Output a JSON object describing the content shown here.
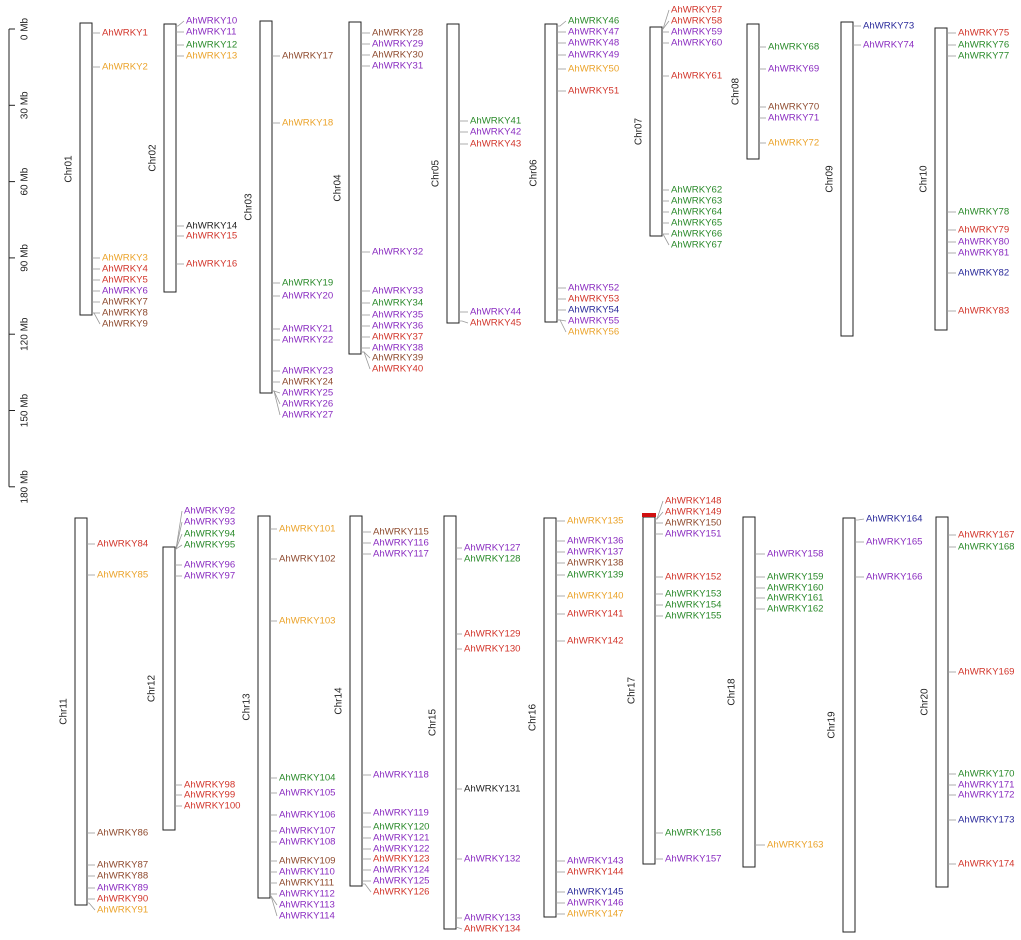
{
  "colors": {
    "red": "#d2352b",
    "orange": "#eba32a",
    "green": "#2a8a2a",
    "purple": "#8a2cc0",
    "brown": "#8f4b2f",
    "blue": "#2a2a9a",
    "black": "#222222",
    "centromere": "#d01010"
  },
  "scale": {
    "unit": "Mb",
    "ticks": [
      "0 Mb",
      "30 Mb",
      "60 Mb",
      "90 Mb",
      "120 Mb",
      "150 Mb",
      "180 Mb"
    ]
  },
  "rows": [
    {
      "chromosomes": [
        {
          "name": "Chr01",
          "genes": [
            {
              "label": "AhWRKY1",
              "color": "red"
            },
            {
              "label": "AhWRKY2",
              "color": "orange"
            },
            {
              "label": "AhWRKY3",
              "color": "orange"
            },
            {
              "label": "AhWRKY4",
              "color": "red"
            },
            {
              "label": "AhWRKY5",
              "color": "red"
            },
            {
              "label": "AhWRKY6",
              "color": "purple"
            },
            {
              "label": "AhWRKY7",
              "color": "brown"
            },
            {
              "label": "AhWRKY8",
              "color": "brown"
            },
            {
              "label": "AhWRKY9",
              "color": "brown"
            }
          ]
        },
        {
          "name": "Chr02",
          "genes": [
            {
              "label": "AhWRKY10",
              "color": "purple"
            },
            {
              "label": "AhWRKY11",
              "color": "purple"
            },
            {
              "label": "AhWRKY12",
              "color": "green"
            },
            {
              "label": "AhWRKY13",
              "color": "orange"
            },
            {
              "label": "AhWRKY14",
              "color": "black"
            },
            {
              "label": "AhWRKY15",
              "color": "red"
            },
            {
              "label": "AhWRKY16",
              "color": "red"
            }
          ]
        },
        {
          "name": "Chr03",
          "genes": [
            {
              "label": "AhWRKY17",
              "color": "brown"
            },
            {
              "label": "AhWRKY18",
              "color": "orange"
            },
            {
              "label": "AhWRKY19",
              "color": "green"
            },
            {
              "label": "AhWRKY20",
              "color": "purple"
            },
            {
              "label": "AhWRKY21",
              "color": "purple"
            },
            {
              "label": "AhWRKY22",
              "color": "purple"
            },
            {
              "label": "AhWRKY23",
              "color": "purple"
            },
            {
              "label": "AhWRKY24",
              "color": "brown"
            },
            {
              "label": "AhWRKY25",
              "color": "purple"
            },
            {
              "label": "AhWRKY26",
              "color": "purple"
            },
            {
              "label": "AhWRKY27",
              "color": "purple"
            }
          ]
        },
        {
          "name": "Chr04",
          "genes": [
            {
              "label": "AhWRKY28",
              "color": "brown"
            },
            {
              "label": "AhWRKY29",
              "color": "purple"
            },
            {
              "label": "AhWRKY30",
              "color": "brown"
            },
            {
              "label": "AhWRKY31",
              "color": "purple"
            },
            {
              "label": "AhWRKY32",
              "color": "purple"
            },
            {
              "label": "AhWRKY33",
              "color": "purple"
            },
            {
              "label": "AhWRKY34",
              "color": "green"
            },
            {
              "label": "AhWRKY35",
              "color": "purple"
            },
            {
              "label": "AhWRKY36",
              "color": "purple"
            },
            {
              "label": "AhWRKY37",
              "color": "red"
            },
            {
              "label": "AhWRKY38",
              "color": "purple"
            },
            {
              "label": "AhWRKY39",
              "color": "brown"
            },
            {
              "label": "AhWRKY40",
              "color": "red"
            }
          ]
        },
        {
          "name": "Chr05",
          "genes": [
            {
              "label": "AhWRKY41",
              "color": "green"
            },
            {
              "label": "AhWRKY42",
              "color": "purple"
            },
            {
              "label": "AhWRKY43",
              "color": "red"
            },
            {
              "label": "AhWRKY44",
              "color": "purple"
            },
            {
              "label": "AhWRKY45",
              "color": "red"
            }
          ]
        },
        {
          "name": "Chr06",
          "genes": [
            {
              "label": "AhWRKY46",
              "color": "green"
            },
            {
              "label": "AhWRKY47",
              "color": "purple"
            },
            {
              "label": "AhWRKY48",
              "color": "purple"
            },
            {
              "label": "AhWRKY49",
              "color": "purple"
            },
            {
              "label": "AhWRKY50",
              "color": "orange"
            },
            {
              "label": "AhWRKY51",
              "color": "red"
            },
            {
              "label": "AhWRKY52",
              "color": "purple"
            },
            {
              "label": "AhWRKY53",
              "color": "red"
            },
            {
              "label": "AhWRKY54",
              "color": "blue"
            },
            {
              "label": "AhWRKY55",
              "color": "purple"
            },
            {
              "label": "AhWRKY56",
              "color": "orange"
            }
          ]
        },
        {
          "name": "Chr07",
          "genes": [
            {
              "label": "AhWRKY57",
              "color": "red"
            },
            {
              "label": "AhWRKY58",
              "color": "red"
            },
            {
              "label": "AhWRKY59",
              "color": "purple"
            },
            {
              "label": "AhWRKY60",
              "color": "purple"
            },
            {
              "label": "AhWRKY61",
              "color": "red"
            },
            {
              "label": "AhWRKY62",
              "color": "green"
            },
            {
              "label": "AhWRKY63",
              "color": "green"
            },
            {
              "label": "AhWRKY64",
              "color": "green"
            },
            {
              "label": "AhWRKY65",
              "color": "green"
            },
            {
              "label": "AhWRKY66",
              "color": "green"
            },
            {
              "label": "AhWRKY67",
              "color": "green"
            }
          ]
        },
        {
          "name": "Chr08",
          "genes": [
            {
              "label": "AhWRKY68",
              "color": "green"
            },
            {
              "label": "AhWRKY69",
              "color": "purple"
            },
            {
              "label": "AhWRKY70",
              "color": "brown"
            },
            {
              "label": "AhWRKY71",
              "color": "purple"
            },
            {
              "label": "AhWRKY72",
              "color": "orange"
            }
          ]
        },
        {
          "name": "Chr09",
          "genes": [
            {
              "label": "AhWRKY73",
              "color": "blue"
            },
            {
              "label": "AhWRKY74",
              "color": "purple"
            }
          ]
        },
        {
          "name": "Chr10",
          "genes": [
            {
              "label": "AhWRKY75",
              "color": "red"
            },
            {
              "label": "AhWRKY76",
              "color": "green"
            },
            {
              "label": "AhWRKY77",
              "color": "green"
            },
            {
              "label": "AhWRKY78",
              "color": "green"
            },
            {
              "label": "AhWRKY79",
              "color": "red"
            },
            {
              "label": "AhWRKY80",
              "color": "purple"
            },
            {
              "label": "AhWRKY81",
              "color": "purple"
            },
            {
              "label": "AhWRKY82",
              "color": "blue"
            },
            {
              "label": "AhWRKY83",
              "color": "red"
            }
          ]
        }
      ]
    },
    {
      "chromosomes": [
        {
          "name": "Chr11",
          "genes": [
            {
              "label": "AhWRKY84",
              "color": "red"
            },
            {
              "label": "AhWRKY85",
              "color": "orange"
            },
            {
              "label": "AhWRKY86",
              "color": "brown"
            },
            {
              "label": "AhWRKY87",
              "color": "brown"
            },
            {
              "label": "AhWRKY88",
              "color": "brown"
            },
            {
              "label": "AhWRKY89",
              "color": "purple"
            },
            {
              "label": "AhWRKY90",
              "color": "red"
            },
            {
              "label": "AhWRKY91",
              "color": "orange"
            }
          ]
        },
        {
          "name": "Chr12",
          "genes": [
            {
              "label": "AhWRKY92",
              "color": "purple"
            },
            {
              "label": "AhWRKY93",
              "color": "purple"
            },
            {
              "label": "AhWRKY94",
              "color": "green"
            },
            {
              "label": "AhWRKY95",
              "color": "green"
            },
            {
              "label": "AhWRKY96",
              "color": "purple"
            },
            {
              "label": "AhWRKY97",
              "color": "purple"
            },
            {
              "label": "AhWRKY98",
              "color": "red"
            },
            {
              "label": "AhWRKY99",
              "color": "red"
            },
            {
              "label": "AhWRKY100",
              "color": "red"
            }
          ]
        },
        {
          "name": "Chr13",
          "genes": [
            {
              "label": "AhWRKY101",
              "color": "orange"
            },
            {
              "label": "AhWRKY102",
              "color": "brown"
            },
            {
              "label": "AhWRKY103",
              "color": "orange"
            },
            {
              "label": "AhWRKY104",
              "color": "green"
            },
            {
              "label": "AhWRKY105",
              "color": "purple"
            },
            {
              "label": "AhWRKY106",
              "color": "purple"
            },
            {
              "label": "AhWRKY107",
              "color": "purple"
            },
            {
              "label": "AhWRKY108",
              "color": "purple"
            },
            {
              "label": "AhWRKY109",
              "color": "brown"
            },
            {
              "label": "AhWRKY110",
              "color": "purple"
            },
            {
              "label": "AhWRKY111",
              "color": "brown"
            },
            {
              "label": "AhWRKY112",
              "color": "purple"
            },
            {
              "label": "AhWRKY113",
              "color": "purple"
            },
            {
              "label": "AhWRKY114",
              "color": "purple"
            }
          ]
        },
        {
          "name": "Chr14",
          "genes": [
            {
              "label": "AhWRKY115",
              "color": "brown"
            },
            {
              "label": "AhWRKY116",
              "color": "purple"
            },
            {
              "label": "AhWRKY117",
              "color": "purple"
            },
            {
              "label": "AhWRKY118",
              "color": "purple"
            },
            {
              "label": "AhWRKY119",
              "color": "purple"
            },
            {
              "label": "AhWRKY120",
              "color": "green"
            },
            {
              "label": "AhWRKY121",
              "color": "purple"
            },
            {
              "label": "AhWRKY122",
              "color": "purple"
            },
            {
              "label": "AhWRKY123",
              "color": "red"
            },
            {
              "label": "AhWRKY124",
              "color": "purple"
            },
            {
              "label": "AhWRKY125",
              "color": "purple"
            },
            {
              "label": "AhWRKY126",
              "color": "red"
            }
          ]
        },
        {
          "name": "Chr15",
          "genes": [
            {
              "label": "AhWRKY127",
              "color": "purple"
            },
            {
              "label": "AhWRKY128",
              "color": "green"
            },
            {
              "label": "AhWRKY129",
              "color": "red"
            },
            {
              "label": "AhWRKY130",
              "color": "red"
            },
            {
              "label": "AhWRKY131",
              "color": "black"
            },
            {
              "label": "AhWRKY132",
              "color": "purple"
            },
            {
              "label": "AhWRKY133",
              "color": "purple"
            },
            {
              "label": "AhWRKY134",
              "color": "red"
            }
          ]
        },
        {
          "name": "Chr16",
          "genes": [
            {
              "label": "AhWRKY135",
              "color": "orange"
            },
            {
              "label": "AhWRKY136",
              "color": "purple"
            },
            {
              "label": "AhWRKY137",
              "color": "purple"
            },
            {
              "label": "AhWRKY138",
              "color": "brown"
            },
            {
              "label": "AhWRKY139",
              "color": "green"
            },
            {
              "label": "AhWRKY140",
              "color": "orange"
            },
            {
              "label": "AhWRKY141",
              "color": "red"
            },
            {
              "label": "AhWRKY142",
              "color": "red"
            },
            {
              "label": "AhWRKY143",
              "color": "purple"
            },
            {
              "label": "AhWRKY144",
              "color": "red"
            },
            {
              "label": "AhWRKY145",
              "color": "blue"
            },
            {
              "label": "AhWRKY146",
              "color": "purple"
            },
            {
              "label": "AhWRKY147",
              "color": "orange"
            }
          ]
        },
        {
          "name": "Chr17",
          "genes": [
            {
              "label": "AhWRKY148",
              "color": "red"
            },
            {
              "label": "AhWRKY149",
              "color": "red"
            },
            {
              "label": "AhWRKY150",
              "color": "brown"
            },
            {
              "label": "AhWRKY151",
              "color": "purple"
            },
            {
              "label": "AhWRKY152",
              "color": "red"
            },
            {
              "label": "AhWRKY153",
              "color": "green"
            },
            {
              "label": "AhWRKY154",
              "color": "green"
            },
            {
              "label": "AhWRKY155",
              "color": "green"
            },
            {
              "label": "AhWRKY156",
              "color": "green"
            },
            {
              "label": "AhWRKY157",
              "color": "purple"
            }
          ]
        },
        {
          "name": "Chr18",
          "genes": [
            {
              "label": "AhWRKY158",
              "color": "purple"
            },
            {
              "label": "AhWRKY159",
              "color": "green"
            },
            {
              "label": "AhWRKY160",
              "color": "green"
            },
            {
              "label": "AhWRKY161",
              "color": "green"
            },
            {
              "label": "AhWRKY162",
              "color": "green"
            },
            {
              "label": "AhWRKY163",
              "color": "orange"
            }
          ]
        },
        {
          "name": "Chr19",
          "genes": [
            {
              "label": "AhWRKY164",
              "color": "blue"
            },
            {
              "label": "AhWRKY165",
              "color": "purple"
            },
            {
              "label": "AhWRKY166",
              "color": "purple"
            }
          ]
        },
        {
          "name": "Chr20",
          "genes": [
            {
              "label": "AhWRKY167",
              "color": "red"
            },
            {
              "label": "AhWRKY168",
              "color": "green"
            },
            {
              "label": "AhWRKY169",
              "color": "red"
            },
            {
              "label": "AhWRKY170",
              "color": "green"
            },
            {
              "label": "AhWRKY171",
              "color": "purple"
            },
            {
              "label": "AhWRKY172",
              "color": "purple"
            },
            {
              "label": "AhWRKY173",
              "color": "blue"
            },
            {
              "label": "AhWRKY174",
              "color": "red"
            }
          ]
        }
      ]
    }
  ]
}
